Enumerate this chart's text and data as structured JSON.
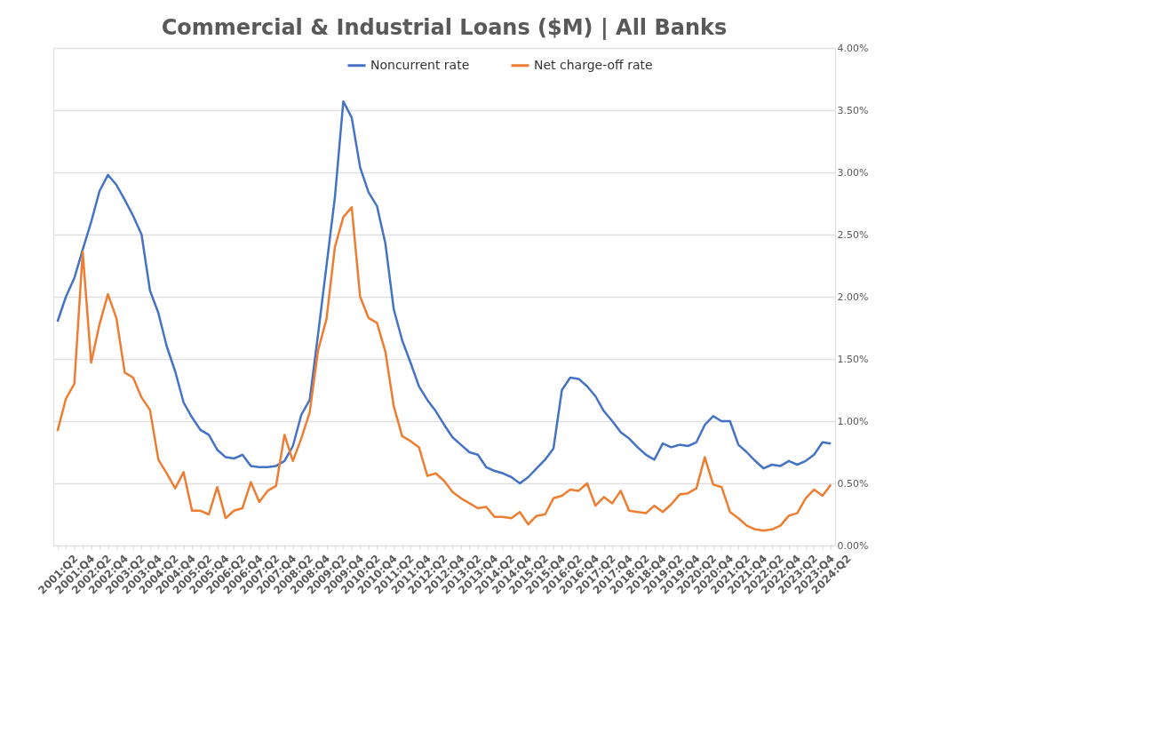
{
  "chart_data": {
    "type": "line",
    "title": "Commercial & Industrial Loans ($M) | All Banks",
    "categories": [
      "2001:Q2",
      null,
      "2001:Q4",
      null,
      "2002:Q2",
      null,
      "2002:Q4",
      null,
      "2003:Q2",
      null,
      "2003:Q4",
      null,
      "2004:Q2",
      null,
      "2004:Q4",
      null,
      "2005:Q2",
      null,
      "2005:Q4",
      null,
      "2006:Q2",
      null,
      "2006:Q4",
      null,
      "2007:Q2",
      null,
      "2007:Q4",
      null,
      "2008:Q2",
      null,
      "2008:Q4",
      null,
      "2009:Q2",
      null,
      "2009:Q4",
      null,
      "2010:Q2",
      null,
      "2010:Q4",
      null,
      "2011:Q2",
      null,
      "2011:Q4",
      null,
      "2012:Q2",
      null,
      "2012:Q4",
      null,
      "2013:Q2",
      null,
      "2013:Q4",
      null,
      "2014:Q2",
      null,
      "2014:Q4",
      null,
      "2015:Q2",
      null,
      "2015:Q4",
      null,
      "2016:Q2",
      null,
      "2016:Q4",
      null,
      "2017:Q2",
      null,
      "2017:Q4",
      null,
      "2018:Q2",
      null,
      "2018:Q4",
      null,
      "2019:Q2",
      null,
      "2019:Q4",
      null,
      "2020:Q2",
      null,
      "2020:Q4",
      null,
      "2021:Q2",
      null,
      "2021:Q4",
      null,
      "2022:Q2",
      null,
      "2022:Q4",
      null,
      "2023:Q2",
      null,
      "2023:Q4",
      null,
      "2024:Q2"
    ],
    "series": [
      {
        "name": "Noncurrent rate",
        "color": "#4472c4",
        "values": [
          1.8,
          2.0,
          2.15,
          2.38,
          2.6,
          2.85,
          2.98,
          2.9,
          2.78,
          2.65,
          2.5,
          2.05,
          1.87,
          1.6,
          1.4,
          1.15,
          1.03,
          0.93,
          0.89,
          0.77,
          0.71,
          0.7,
          0.73,
          0.64,
          0.63,
          0.63,
          0.64,
          0.68,
          0.8,
          1.05,
          1.17,
          1.7,
          2.25,
          2.8,
          3.57,
          3.44,
          3.04,
          2.84,
          2.73,
          2.43,
          1.9,
          1.65,
          1.47,
          1.28,
          1.17,
          1.08,
          0.97,
          0.87,
          0.81,
          0.75,
          0.73,
          0.63,
          0.6,
          0.58,
          0.55,
          0.5,
          0.55,
          0.62,
          0.69,
          0.78,
          1.25,
          1.35,
          1.34,
          1.28,
          1.2,
          1.08,
          1.0,
          0.91,
          0.86,
          0.79,
          0.73,
          0.69,
          0.82,
          0.79,
          0.81,
          0.8,
          0.83,
          0.97,
          1.04,
          1.0,
          1.0,
          0.81,
          0.75,
          0.68,
          0.62,
          0.65,
          0.64,
          0.68,
          0.65,
          0.68,
          0.73,
          0.83,
          0.82
        ]
      },
      {
        "name": "Net charge-off rate",
        "color": "#ed7d31",
        "values": [
          0.92,
          1.18,
          1.3,
          2.36,
          1.47,
          1.78,
          2.02,
          1.83,
          1.39,
          1.35,
          1.19,
          1.09,
          0.69,
          0.58,
          0.46,
          0.59,
          0.28,
          0.28,
          0.25,
          0.47,
          0.22,
          0.28,
          0.3,
          0.51,
          0.35,
          0.44,
          0.48,
          0.89,
          0.68,
          0.86,
          1.07,
          1.57,
          1.82,
          2.4,
          2.64,
          2.72,
          2.0,
          1.83,
          1.79,
          1.56,
          1.12,
          0.88,
          0.84,
          0.79,
          0.56,
          0.58,
          0.52,
          0.43,
          0.38,
          0.34,
          0.3,
          0.31,
          0.23,
          0.23,
          0.22,
          0.27,
          0.17,
          0.24,
          0.25,
          0.38,
          0.4,
          0.45,
          0.44,
          0.5,
          0.32,
          0.39,
          0.34,
          0.44,
          0.28,
          0.27,
          0.26,
          0.32,
          0.27,
          0.33,
          0.41,
          0.42,
          0.46,
          0.71,
          0.49,
          0.47,
          0.27,
          0.22,
          0.16,
          0.13,
          0.12,
          0.13,
          0.16,
          0.24,
          0.26,
          0.38,
          0.45,
          0.4,
          0.49
        ]
      }
    ],
    "ylim": [
      0,
      4
    ],
    "yticks": [
      {
        "value": 0,
        "label": "0.00%"
      },
      {
        "value": 0.5,
        "label": "0.50%"
      },
      {
        "value": 1,
        "label": "1.00%"
      },
      {
        "value": 1.5,
        "label": "1.50%"
      },
      {
        "value": 2,
        "label": "2.00%"
      },
      {
        "value": 2.5,
        "label": "2.50%"
      },
      {
        "value": 3,
        "label": "3.00%"
      },
      {
        "value": 3.5,
        "label": "3.50%"
      },
      {
        "value": 4,
        "label": "4.00%"
      }
    ],
    "grid": "y",
    "legend": "top",
    "marker": "none",
    "line_style": "solid"
  }
}
